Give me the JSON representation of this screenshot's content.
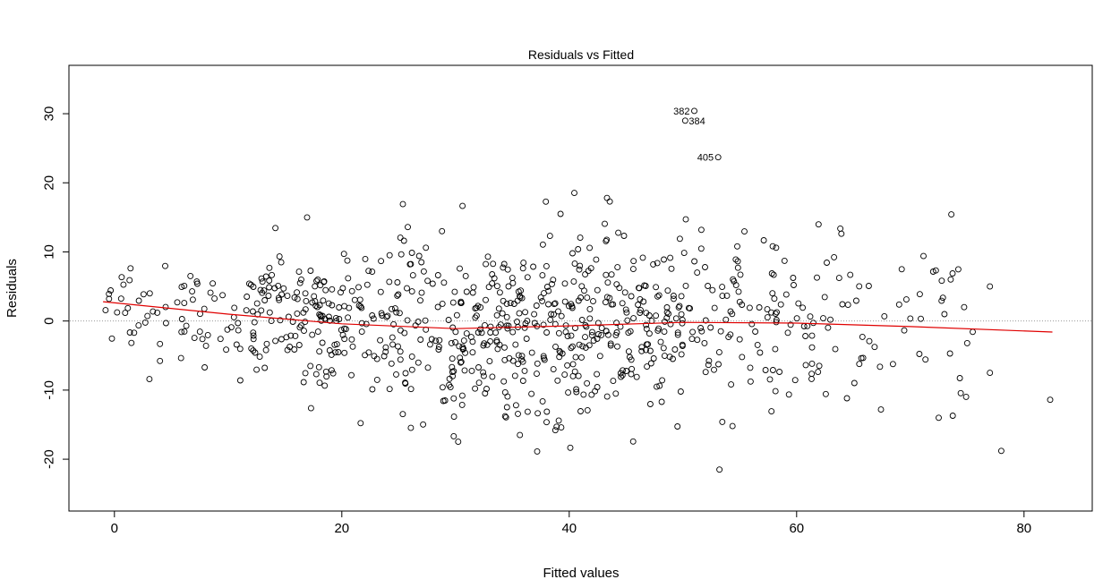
{
  "chart_data": {
    "type": "scatter",
    "title": "Residuals vs Fitted",
    "xlabel": "Fitted values",
    "ylabel": "Residuals",
    "xlim": [
      -4,
      86
    ],
    "ylim": [
      -27.5,
      37
    ],
    "xticks": [
      0,
      20,
      40,
      60,
      80
    ],
    "yticks": [
      -20,
      -10,
      0,
      10,
      20,
      30
    ],
    "grid": false,
    "reference_line": {
      "y": 0,
      "style": "dotted",
      "color": "#999999"
    },
    "smoother": {
      "color": "#e00000",
      "x": [
        -1,
        10,
        20,
        30,
        40,
        50,
        60,
        70,
        82.5
      ],
      "y": [
        2.8,
        1.0,
        -0.4,
        -1.1,
        -0.7,
        -0.2,
        -0.3,
        -0.8,
        -1.6
      ]
    },
    "highlighted_points": [
      {
        "label": "382",
        "x": 51.0,
        "y": 30.4
      },
      {
        "label": "384",
        "x": 50.2,
        "y": 29.0
      },
      {
        "label": "405",
        "x": 53.1,
        "y": 23.7
      }
    ],
    "colors": {
      "points": "#000000",
      "smoother": "#e00000",
      "axes": "#000000"
    }
  }
}
